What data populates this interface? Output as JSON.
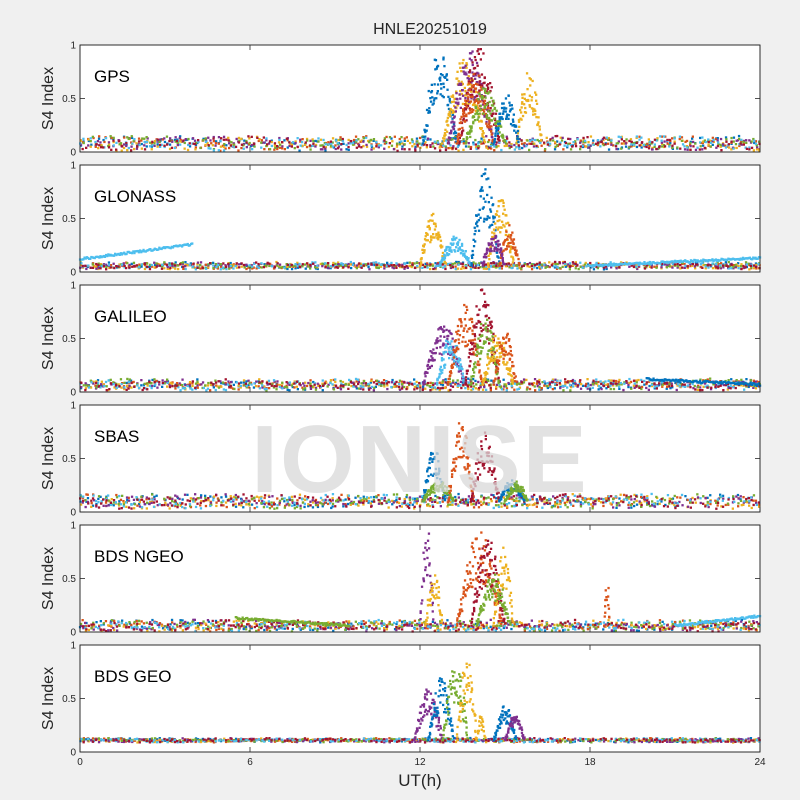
{
  "figure": {
    "title": "HNLE20251019",
    "watermark": "IONISE"
  },
  "chart_data": {
    "type": "scatter",
    "title": "HNLE20251019",
    "xlabel": "UT(h)",
    "ylabel": "S4 Index",
    "xlim": [
      0,
      24
    ],
    "ylim": [
      0,
      1
    ],
    "xticks": [
      0,
      6,
      12,
      18,
      24
    ],
    "yticks": [
      0,
      0.5,
      1
    ],
    "xtick_labels": [
      "0",
      "6",
      "12",
      "18",
      "24"
    ],
    "ytick_labels": [
      "0",
      "0.5",
      "1"
    ],
    "colors": [
      "#0072BD",
      "#D95319",
      "#EDB120",
      "#7E2F8E",
      "#77AC30",
      "#4DBEEE",
      "#A2142F"
    ],
    "panels": [
      {
        "name": "GPS",
        "baseline": 0.08,
        "noise": 0.05,
        "slow": [],
        "events": [
          {
            "c": 0,
            "t0": 12.1,
            "t1": 13.3,
            "peak": 0.95
          },
          {
            "c": 2,
            "t0": 12.8,
            "t1": 14.3,
            "peak": 0.9
          },
          {
            "c": 3,
            "t0": 13.0,
            "t1": 14.6,
            "peak": 0.95
          },
          {
            "c": 6,
            "t0": 13.4,
            "t1": 14.8,
            "peak": 0.98
          },
          {
            "c": 1,
            "t0": 13.3,
            "t1": 14.6,
            "peak": 0.75
          },
          {
            "c": 4,
            "t0": 13.6,
            "t1": 15.0,
            "peak": 0.6
          },
          {
            "c": 2,
            "t0": 15.4,
            "t1": 16.3,
            "peak": 0.75
          },
          {
            "c": 0,
            "t0": 14.6,
            "t1": 15.5,
            "peak": 0.55
          }
        ]
      },
      {
        "name": "GLONASS",
        "baseline": 0.06,
        "noise": 0.025,
        "slow": [
          {
            "c": 5,
            "t0": 0.0,
            "t1": 4.0,
            "v0": 0.12,
            "v1": 0.26
          },
          {
            "c": 5,
            "t0": 18.0,
            "t1": 24.0,
            "v0": 0.06,
            "v1": 0.13
          }
        ],
        "events": [
          {
            "c": 2,
            "t0": 12.0,
            "t1": 12.9,
            "peak": 0.55
          },
          {
            "c": 5,
            "t0": 12.7,
            "t1": 13.8,
            "peak": 0.35
          },
          {
            "c": 0,
            "t0": 13.8,
            "t1": 14.8,
            "peak": 0.98
          },
          {
            "c": 2,
            "t0": 14.4,
            "t1": 15.3,
            "peak": 0.7
          },
          {
            "c": 1,
            "t0": 14.8,
            "t1": 15.5,
            "peak": 0.45
          },
          {
            "c": 3,
            "t0": 14.2,
            "t1": 15.0,
            "peak": 0.35
          }
        ]
      },
      {
        "name": "GALILEO",
        "baseline": 0.07,
        "noise": 0.04,
        "slow": [
          {
            "c": 0,
            "t0": 20.0,
            "t1": 24.0,
            "v0": 0.12,
            "v1": 0.07
          }
        ],
        "events": [
          {
            "c": 3,
            "t0": 12.1,
            "t1": 13.6,
            "peak": 0.65
          },
          {
            "c": 5,
            "t0": 12.6,
            "t1": 13.6,
            "peak": 0.55
          },
          {
            "c": 1,
            "t0": 13.0,
            "t1": 14.2,
            "peak": 0.85
          },
          {
            "c": 6,
            "t0": 13.6,
            "t1": 14.8,
            "peak": 0.97
          },
          {
            "c": 4,
            "t0": 13.8,
            "t1": 14.8,
            "peak": 0.7
          },
          {
            "c": 2,
            "t0": 14.2,
            "t1": 15.3,
            "peak": 0.55
          },
          {
            "c": 1,
            "t0": 14.6,
            "t1": 15.4,
            "peak": 0.6
          }
        ]
      },
      {
        "name": "SBAS",
        "baseline": 0.1,
        "noise": 0.05,
        "slow": [],
        "events": [
          {
            "c": 0,
            "t0": 12.1,
            "t1": 12.9,
            "peak": 0.6
          },
          {
            "c": 4,
            "t0": 12.1,
            "t1": 13.2,
            "peak": 0.3
          },
          {
            "c": 1,
            "t0": 13.0,
            "t1": 13.9,
            "peak": 0.85
          },
          {
            "c": 6,
            "t0": 13.8,
            "t1": 14.8,
            "peak": 0.75
          },
          {
            "c": 0,
            "t0": 14.8,
            "t1": 15.7,
            "peak": 0.3
          },
          {
            "c": 4,
            "t0": 15.0,
            "t1": 15.8,
            "peak": 0.3
          }
        ]
      },
      {
        "name": "BDS NGEO",
        "baseline": 0.06,
        "noise": 0.04,
        "slow": [
          {
            "c": 4,
            "t0": 5.5,
            "t1": 9.5,
            "v0": 0.13,
            "v1": 0.06
          },
          {
            "c": 5,
            "t0": 21.0,
            "t1": 24.0,
            "v0": 0.06,
            "v1": 0.15
          }
        ],
        "events": [
          {
            "c": 3,
            "t0": 12.0,
            "t1": 12.5,
            "peak": 0.97
          },
          {
            "c": 2,
            "t0": 12.2,
            "t1": 12.8,
            "peak": 0.55
          },
          {
            "c": 1,
            "t0": 13.3,
            "t1": 14.9,
            "peak": 0.95
          },
          {
            "c": 6,
            "t0": 13.8,
            "t1": 15.0,
            "peak": 0.9
          },
          {
            "c": 2,
            "t0": 14.6,
            "t1": 15.3,
            "peak": 0.8
          },
          {
            "c": 4,
            "t0": 14.0,
            "t1": 15.2,
            "peak": 0.55
          },
          {
            "c": 1,
            "t0": 18.5,
            "t1": 18.7,
            "peak": 0.45
          }
        ]
      },
      {
        "name": "BDS GEO",
        "baseline": 0.11,
        "noise": 0.015,
        "slow": [],
        "events": [
          {
            "c": 3,
            "t0": 11.8,
            "t1": 12.8,
            "peak": 0.6
          },
          {
            "c": 0,
            "t0": 12.3,
            "t1": 13.2,
            "peak": 0.7
          },
          {
            "c": 4,
            "t0": 12.8,
            "t1": 13.7,
            "peak": 0.85
          },
          {
            "c": 2,
            "t0": 13.3,
            "t1": 14.0,
            "peak": 0.9
          },
          {
            "c": 0,
            "t0": 14.6,
            "t1": 15.4,
            "peak": 0.45
          },
          {
            "c": 3,
            "t0": 15.0,
            "t1": 15.7,
            "peak": 0.35
          },
          {
            "c": 2,
            "t0": 14.0,
            "t1": 14.3,
            "peak": 0.35
          }
        ]
      }
    ]
  }
}
